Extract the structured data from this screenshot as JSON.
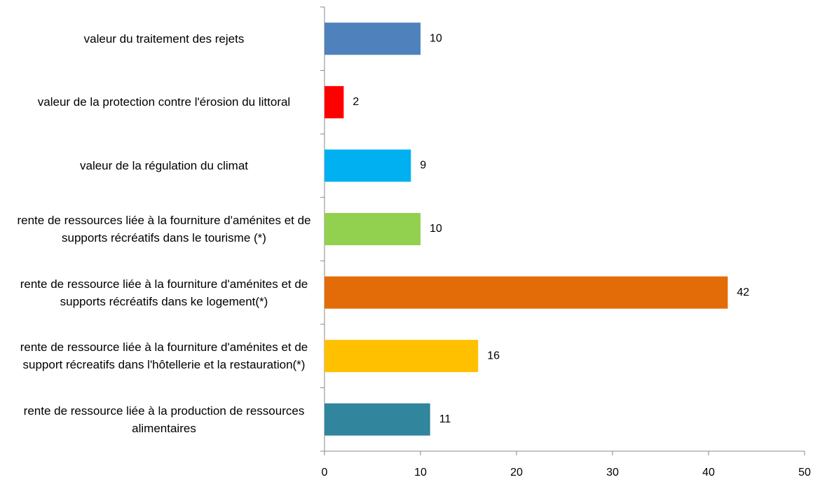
{
  "chart_data": {
    "type": "bar",
    "categories": [
      "valeur du traitement des rejets",
      "valeur de la protection contre l'érosion du littoral",
      "valeur de la régulation du climat",
      "rente de ressources liée à la fourniture d'aménites et de supports récréatifs dans le tourisme (*)",
      "rente de ressource liée à la fourniture d'aménites et de supports récréatifs dans ke logement(*)",
      "rente de ressource liée à la fourniture d'aménites et de support récreatifs dans l'hôtellerie et la restauration(*)",
      "rente de ressource liée à la production de ressources alimentaires"
    ],
    "values": [
      10,
      2,
      9,
      10,
      42,
      16,
      11
    ],
    "colors": [
      "#4f81bd",
      "#ff0000",
      "#00b0f0",
      "#92d050",
      "#e36c09",
      "#ffc000",
      "#31859c"
    ],
    "xlim": [
      0,
      50
    ],
    "xticks": [
      0,
      10,
      20,
      30,
      40,
      50
    ]
  }
}
